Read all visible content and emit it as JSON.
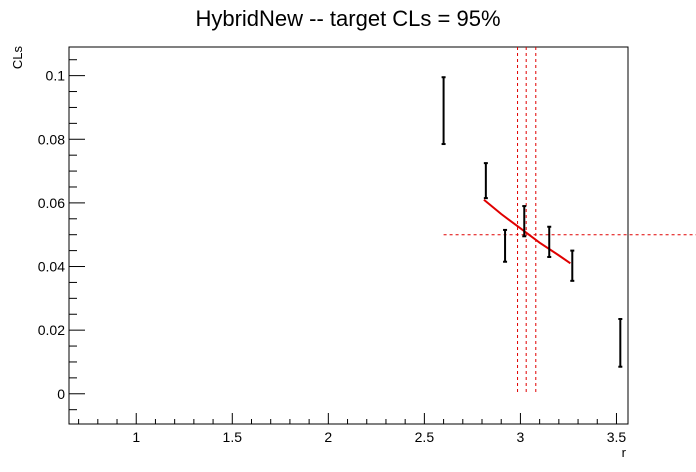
{
  "chart_data": {
    "type": "scatter",
    "title": "HybridNew -- target CLs = 95%",
    "xlabel": "r",
    "ylabel": "CLs",
    "xlim": [
      0.65,
      3.56
    ],
    "ylim": [
      -0.0095,
      0.109
    ],
    "xticks": [
      1,
      1.5,
      2,
      2.5,
      3,
      3.5
    ],
    "xtick_labels": [
      "1",
      "1.5",
      "2",
      "2.5",
      "3",
      "3.5"
    ],
    "yticks": [
      0,
      0.02,
      0.04,
      0.06,
      0.08,
      0.1
    ],
    "ytick_labels": [
      "0",
      "0.02",
      "0.04",
      "0.06",
      "0.08",
      "0.1"
    ],
    "grid": false,
    "points": [
      {
        "x": 2.6,
        "ylow": 0.0785,
        "yhigh": 0.0995
      },
      {
        "x": 2.82,
        "ylow": 0.0615,
        "yhigh": 0.0725
      },
      {
        "x": 2.92,
        "ylow": 0.0415,
        "yhigh": 0.0515
      },
      {
        "x": 3.02,
        "ylow": 0.0495,
        "yhigh": 0.059
      },
      {
        "x": 3.15,
        "ylow": 0.043,
        "yhigh": 0.0525
      },
      {
        "x": 3.27,
        "ylow": 0.0355,
        "yhigh": 0.045
      },
      {
        "x": 3.52,
        "ylow": 0.0085,
        "yhigh": 0.0235
      }
    ],
    "fit": {
      "x": [
        2.81,
        2.9,
        3.0,
        3.1,
        3.2,
        3.26
      ],
      "y": [
        0.061,
        0.0565,
        0.052,
        0.0475,
        0.0435,
        0.041
      ]
    },
    "target_line": 0.05,
    "limit_lines": [
      2.985,
      3.03,
      3.08
    ],
    "colors": {
      "points": "#000000",
      "fit": "#e00000",
      "reference": "#e00000",
      "axis": "#000000"
    }
  }
}
